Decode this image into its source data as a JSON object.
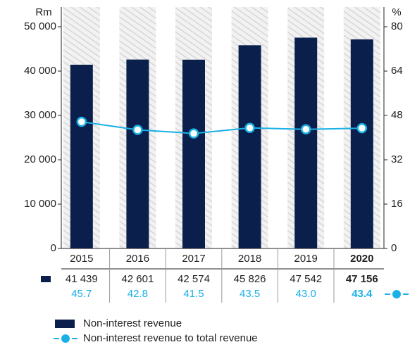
{
  "chart_data": {
    "type": "bar_line",
    "y_label": "Rm",
    "y2_label": "%",
    "categories": [
      "2015",
      "2016",
      "2017",
      "2018",
      "2019",
      "2020"
    ],
    "series": [
      {
        "name": "Non-interest revenue",
        "color": "#0b1f4d",
        "type": "bar",
        "values": [
          41439,
          42601,
          42574,
          45826,
          47542,
          47156
        ],
        "value_labels": [
          "41 439",
          "42 601",
          "42 574",
          "45 826",
          "47 542",
          "47 156"
        ]
      },
      {
        "name": "Non-interest revenue to total revenue",
        "color": "#1ab0e6",
        "type": "line",
        "axis": "y2",
        "values": [
          45.7,
          42.8,
          41.5,
          43.5,
          43.0,
          43.4
        ],
        "value_labels": [
          "45.7",
          "42.8",
          "41.5",
          "43.5",
          "43.0",
          "43.4"
        ]
      }
    ],
    "ylim": [
      0,
      55000
    ],
    "yticks": [
      0,
      {
        "value": 10000,
        "label": "10 000"
      },
      {
        "value": 20000,
        "label": "20 000"
      },
      {
        "value": 30000,
        "label": "30 000"
      },
      {
        "value": 40000,
        "label": "40 000"
      },
      {
        "value": 50000,
        "label": "50 000"
      }
    ],
    "y2lim": [
      0,
      88
    ],
    "y2ticks": [
      0,
      16,
      32,
      48,
      64,
      80
    ]
  }
}
